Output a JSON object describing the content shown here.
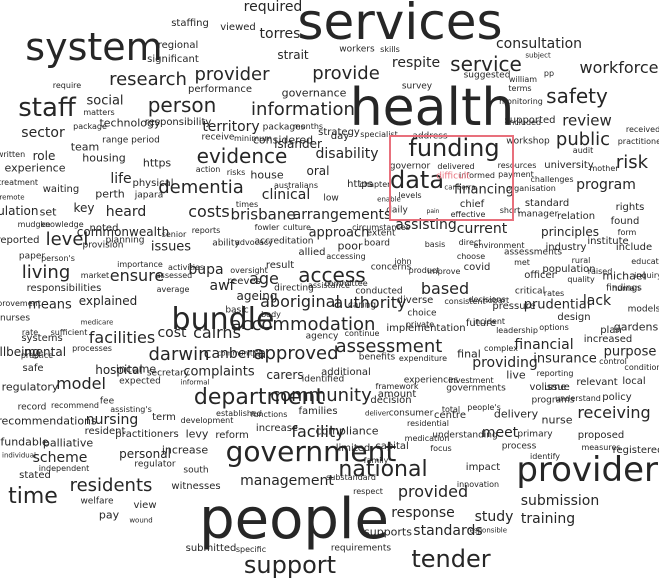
{
  "words": [
    "services",
    "health",
    "people",
    "system",
    "providers",
    "government",
    "bundle",
    "funding",
    "data",
    "staff",
    "service",
    "safety",
    "evidence",
    "person",
    "access",
    "national",
    "department",
    "time",
    "support",
    "tender",
    "approved",
    "research",
    "provider",
    "provide",
    "community",
    "accommodation",
    "residents",
    "dementia",
    "assessment",
    "information",
    "workforce",
    "public",
    "review",
    "risk",
    "level",
    "living",
    "darwin",
    "cairns",
    "canberra",
    "facility",
    "financing",
    "aboriginal",
    "based",
    "authority",
    "costs",
    "brisbane",
    "arrangements",
    "disability",
    "clinical",
    "program",
    "approach",
    "assisting",
    "current",
    "ensure",
    "facilities",
    "model",
    "management",
    "provided",
    "response",
    "submission",
    "training",
    "study",
    "standards",
    "receiving",
    "meet",
    "insurance",
    "financial",
    "lack",
    "sector",
    "social",
    "life",
    "heard",
    "explained",
    "cost",
    "bupa",
    "awf",
    "ageing",
    "age",
    "carers",
    "complaints",
    "personal",
    "scheme",
    "nursing",
    "hospital",
    "recommendations",
    "regulatory",
    "income",
    "mental",
    "means",
    "role",
    "issues",
    "commonwealth",
    "experience",
    "regulation",
    "set",
    "perth",
    "key",
    "levels",
    "daily",
    "chief",
    "effective",
    "delivered",
    "informed",
    "governor",
    "difficult",
    "pain",
    "consultation",
    "torres",
    "strait",
    "respite",
    "required",
    "workers",
    "skills",
    "territory",
    "islander",
    "oral",
    "day",
    "https",
    "considered",
    "governance",
    "performance",
    "regional",
    "significant",
    "viewed",
    "staffing",
    "supported",
    "workshop",
    "received",
    "practitioner",
    "university",
    "standard",
    "principles",
    "industry",
    "institute",
    "include",
    "officer",
    "rural",
    "found",
    "rights",
    "pressure",
    "prudential",
    "design",
    "gardens",
    "increased",
    "purpose",
    "plan",
    "providing",
    "live",
    "final",
    "future",
    "covid",
    "poor",
    "concerns",
    "allied",
    "agency",
    "additional",
    "amount",
    "capital",
    "compliance",
    "increase",
    "family",
    "impact",
    "primary",
    "process",
    "proposed",
    "registered",
    "requirements",
    "supports",
    "submitted",
    "view",
    "witnesses",
    "south",
    "regulator",
    "practitioners",
    "refundable",
    "palliative",
    "stated",
    "resident",
    "term",
    "reform",
    "limited",
    "levy",
    "increase",
    "independent",
    "pay",
    "welfare",
    "systems",
    "wellbeing",
    "practice",
    "safe",
    "record",
    "recommend",
    "responsibilities",
    "reported",
    "paper",
    "provision",
    "planning",
    "housing",
    "team",
    "package",
    "remote",
    "written",
    "treatment",
    "waiting",
    "strategy",
    "range period",
    "https",
    "physical",
    "japara",
    "house",
    "identified",
    "delivery",
    "centre",
    "nurse",
    "issue",
    "policy",
    "local",
    "relevant",
    "reporting",
    "person's",
    "market",
    "noted",
    "importance",
    "hobart",
    "environment",
    "direct",
    "decisions",
    "critical",
    "rates",
    "findings",
    "human",
    "models",
    "population",
    "raised",
    "inquiry",
    "michael",
    "subject",
    "pp",
    "william",
    "terms",
    "suggested",
    "survey",
    "specialist",
    "require",
    "matters",
    "technology",
    "responsibility",
    "receive",
    "packages",
    "months",
    "minimum",
    "risks",
    "times",
    "fowler",
    "culture",
    "australians",
    "low",
    "enable",
    "chapter",
    "circumstances",
    "extent",
    "board",
    "basis",
    "audit",
    "challenges",
    "relation",
    "organisation",
    "mother",
    "manager",
    "resources",
    "included",
    "monitoring",
    "payment",
    "total",
    "investment",
    "governments",
    "experiences",
    "framework",
    "decision",
    "consumer",
    "deliver",
    "families",
    "established",
    "development",
    "functions",
    "informal",
    "expected",
    "secretary",
    "individual",
    "focus",
    "understanding",
    "residential",
    "medication",
    "measures",
    "identify",
    "innovation",
    "responsible",
    "substandard",
    "respect",
    "specific",
    "wound",
    "people's",
    "programs",
    "understand",
    "volume",
    "leadership",
    "options",
    "private",
    "implementation",
    "expenditure",
    "incident",
    "benefits",
    "choice",
    "consistent",
    "diverse",
    "caring",
    "conducted",
    "committee",
    "assistance",
    "accessing",
    "accreditation",
    "advocacy",
    "ability",
    "activities",
    "assessed",
    "average",
    "basic",
    "body",
    "continue",
    "complex",
    "conditions",
    "control",
    "assisting's",
    "fee",
    "medicare",
    "sufficient",
    "processes",
    "rate",
    "nurses",
    "improvement",
    "mudgee",
    "knowledge",
    "senior",
    "reports",
    "result",
    "reeves",
    "oversight",
    "directing",
    "communities",
    "address",
    "met",
    "assessments",
    "action",
    "canberra",
    "quality",
    "educaton",
    "form",
    "choose",
    "improve",
    "product",
    "john",
    "short",
    "referred",
    "ongoing",
    "carer",
    "beach",
    "tax",
    "fund"
  ]
}
